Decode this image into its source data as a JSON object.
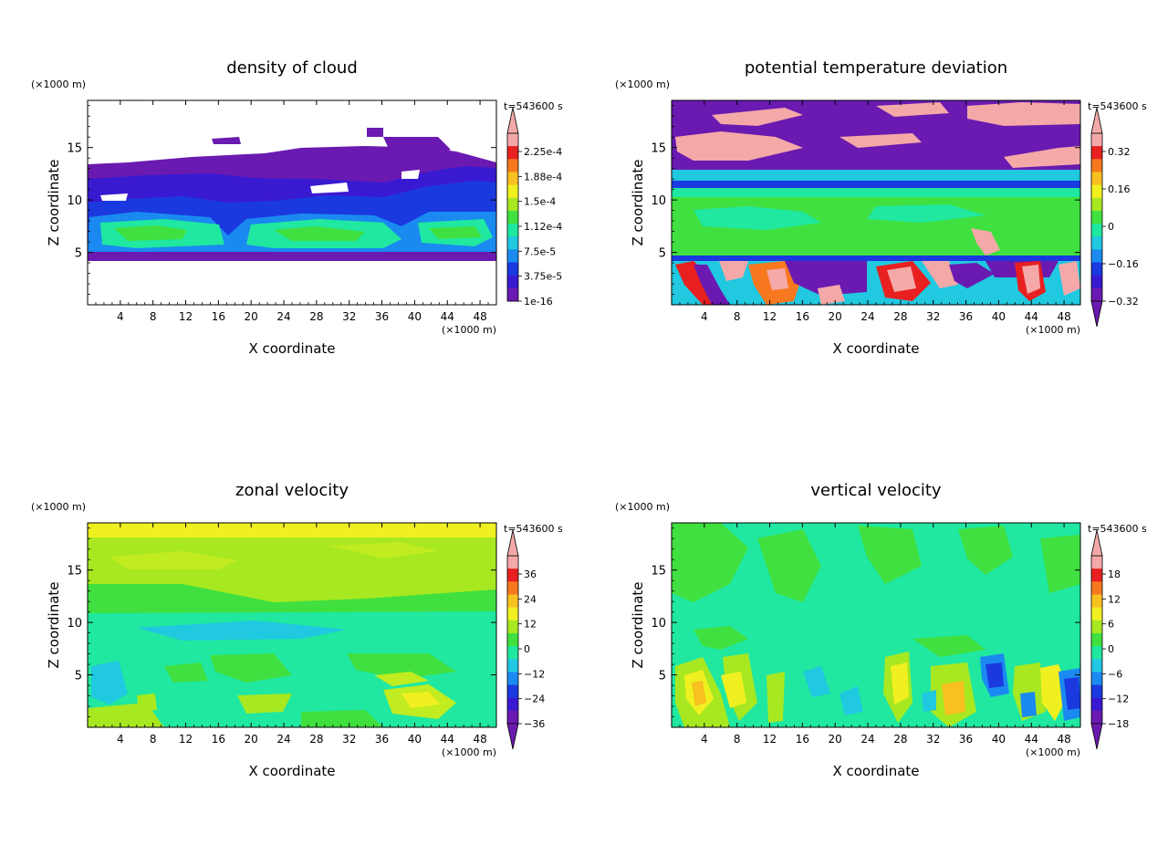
{
  "figure": {
    "time_label": "t=543600 s",
    "x_unit": "(×1000 m)",
    "z_unit": "(×1000 m)",
    "xlabel": "X coordinate",
    "ylabel": "Z coordinate"
  },
  "chart_data": [
    {
      "type": "heatmap",
      "title": "density of cloud",
      "xlabel": "X coordinate",
      "ylabel": "Z coordinate",
      "xlim": [
        0,
        50
      ],
      "ylim": [
        0,
        19.5
      ],
      "x_ticks": [
        4,
        8,
        12,
        16,
        20,
        24,
        28,
        32,
        36,
        40,
        44,
        48
      ],
      "y_ticks": [
        5,
        10,
        15
      ],
      "colorbar": {
        "levels": [
          "2.25e-4",
          "1.88e-4",
          "1.5e-4",
          "1.12e-4",
          "7.5e-5",
          "3.75e-5",
          "1e-16"
        ],
        "arrow_top": true,
        "arrow_bottom": false
      }
    },
    {
      "type": "heatmap",
      "title": "potential temperature deviation",
      "xlabel": "X coordinate",
      "ylabel": "Z coordinate",
      "xlim": [
        0,
        50
      ],
      "ylim": [
        0,
        19.5
      ],
      "x_ticks": [
        4,
        8,
        12,
        16,
        20,
        24,
        28,
        32,
        36,
        40,
        44,
        48
      ],
      "y_ticks": [
        5,
        10,
        15
      ],
      "colorbar": {
        "levels": [
          "0.32",
          "0.16",
          "0",
          "−0.16",
          "−0.32"
        ],
        "arrow_top": true,
        "arrow_bottom": true
      }
    },
    {
      "type": "heatmap",
      "title": "zonal velocity",
      "xlabel": "X coordinate",
      "ylabel": "Z coordinate",
      "xlim": [
        0,
        50
      ],
      "ylim": [
        0,
        19.5
      ],
      "x_ticks": [
        4,
        8,
        12,
        16,
        20,
        24,
        28,
        32,
        36,
        40,
        44,
        48
      ],
      "y_ticks": [
        5,
        10,
        15
      ],
      "colorbar": {
        "levels": [
          "36",
          "24",
          "12",
          "0",
          "−12",
          "−24",
          "−36"
        ],
        "arrow_top": true,
        "arrow_bottom": true
      }
    },
    {
      "type": "heatmap",
      "title": "vertical velocity",
      "xlabel": "X coordinate",
      "ylabel": "Z coordinate",
      "xlim": [
        0,
        50
      ],
      "ylim": [
        0,
        19.5
      ],
      "x_ticks": [
        4,
        8,
        12,
        16,
        20,
        24,
        28,
        32,
        36,
        40,
        44,
        48
      ],
      "y_ticks": [
        5,
        10,
        15
      ],
      "colorbar": {
        "levels": [
          "18",
          "12",
          "6",
          "0",
          "−6",
          "−12",
          "−18"
        ],
        "arrow_top": true,
        "arrow_bottom": true
      }
    }
  ],
  "colors": {
    "palette": [
      "#6a1ab0",
      "#3a1ad0",
      "#1a3ae0",
      "#1a8af0",
      "#20c8e0",
      "#20e8a0",
      "#40e040",
      "#a8e820",
      "#f0f020",
      "#f8c020",
      "#f87820",
      "#e82020",
      "#f4a8a8"
    ]
  }
}
